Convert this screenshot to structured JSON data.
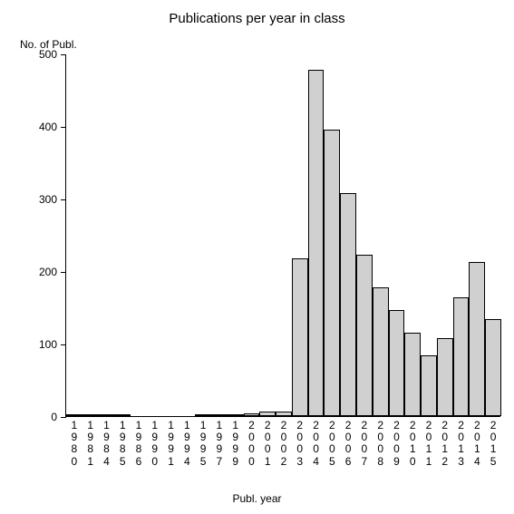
{
  "chart": {
    "type": "bar",
    "title": "Publications per year in class",
    "title_fontsize": 15,
    "y_axis_label": "No. of Publ.",
    "x_axis_label": "Publ. year",
    "label_fontsize": 12,
    "background_color": "#ffffff",
    "bar_color": "#d0d0d0",
    "border_color": "#000000",
    "text_color": "#000000",
    "ylim": [
      0,
      500
    ],
    "y_ticks": [
      0,
      100,
      200,
      300,
      400,
      500
    ],
    "bar_width": 1.0,
    "categories": [
      "1980",
      "1981",
      "1984",
      "1985",
      "1986",
      "1990",
      "1991",
      "1994",
      "1995",
      "1997",
      "1999",
      "2000",
      "2001",
      "2002",
      "2003",
      "2004",
      "2005",
      "2006",
      "2007",
      "2008",
      "2009",
      "2010",
      "2011",
      "2012",
      "2013",
      "2014",
      "2015"
    ],
    "values": [
      2,
      1,
      2,
      1,
      0,
      0,
      0,
      0,
      2,
      3,
      1,
      4,
      6,
      6,
      218,
      478,
      395,
      308,
      222,
      178,
      146,
      115,
      84,
      107,
      164,
      213,
      134
    ]
  }
}
